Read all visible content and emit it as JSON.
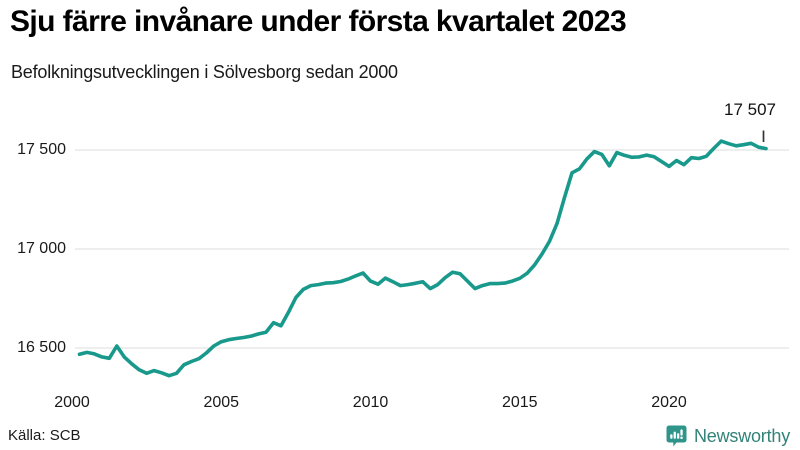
{
  "header": {
    "title": "Sju färre invånare under första kvartalet 2023",
    "subtitle": "Befolkningsutvecklingen i Sölvesborg sedan 2000"
  },
  "footer": {
    "source": "Källa: SCB",
    "brand": "Newsworthy"
  },
  "chart_data": {
    "type": "line",
    "title": "Sju färre invånare under första kvartalet 2023",
    "subtitle": "Befolkningsutvecklingen i Sölvesborg sedan 2000",
    "x_start": 2000.25,
    "x_step": 0.25,
    "x_unit": "quarter",
    "xlim": [
      2000,
      2023.25
    ],
    "ylim": [
      16250,
      17650
    ],
    "grid": "horizontal-only",
    "legend": "none",
    "line_color": "#18998b",
    "values": [
      16468,
      16478,
      16470,
      16455,
      16448,
      16510,
      16455,
      16420,
      16390,
      16372,
      16386,
      16375,
      16360,
      16372,
      16415,
      16432,
      16446,
      16475,
      16510,
      16532,
      16542,
      16548,
      16553,
      16560,
      16571,
      16580,
      16628,
      16612,
      16680,
      16755,
      16796,
      16815,
      16820,
      16828,
      16830,
      16836,
      16848,
      16864,
      16879,
      16838,
      16822,
      16853,
      16835,
      16815,
      16820,
      16827,
      16835,
      16800,
      16820,
      16855,
      16883,
      16875,
      16838,
      16800,
      16815,
      16825,
      16825,
      16828,
      16838,
      16852,
      16878,
      16920,
      16975,
      17040,
      17130,
      17260,
      17385,
      17405,
      17455,
      17492,
      17478,
      17420,
      17487,
      17473,
      17463,
      17465,
      17474,
      17466,
      17442,
      17417,
      17447,
      17426,
      17461,
      17457,
      17468,
      17508,
      17545,
      17532,
      17521,
      17527,
      17534,
      17514,
      17507
    ],
    "yticks": {
      "values": [
        16500,
        17000,
        17500
      ],
      "labels": [
        "16 500",
        "17 000",
        "17 500"
      ]
    },
    "xticks": {
      "values": [
        2000,
        2005,
        2010,
        2015,
        2020
      ],
      "labels": [
        "2000",
        "2005",
        "2010",
        "2015",
        "2020"
      ]
    },
    "end_annotation": {
      "label": "17 507",
      "value": 17507
    }
  }
}
